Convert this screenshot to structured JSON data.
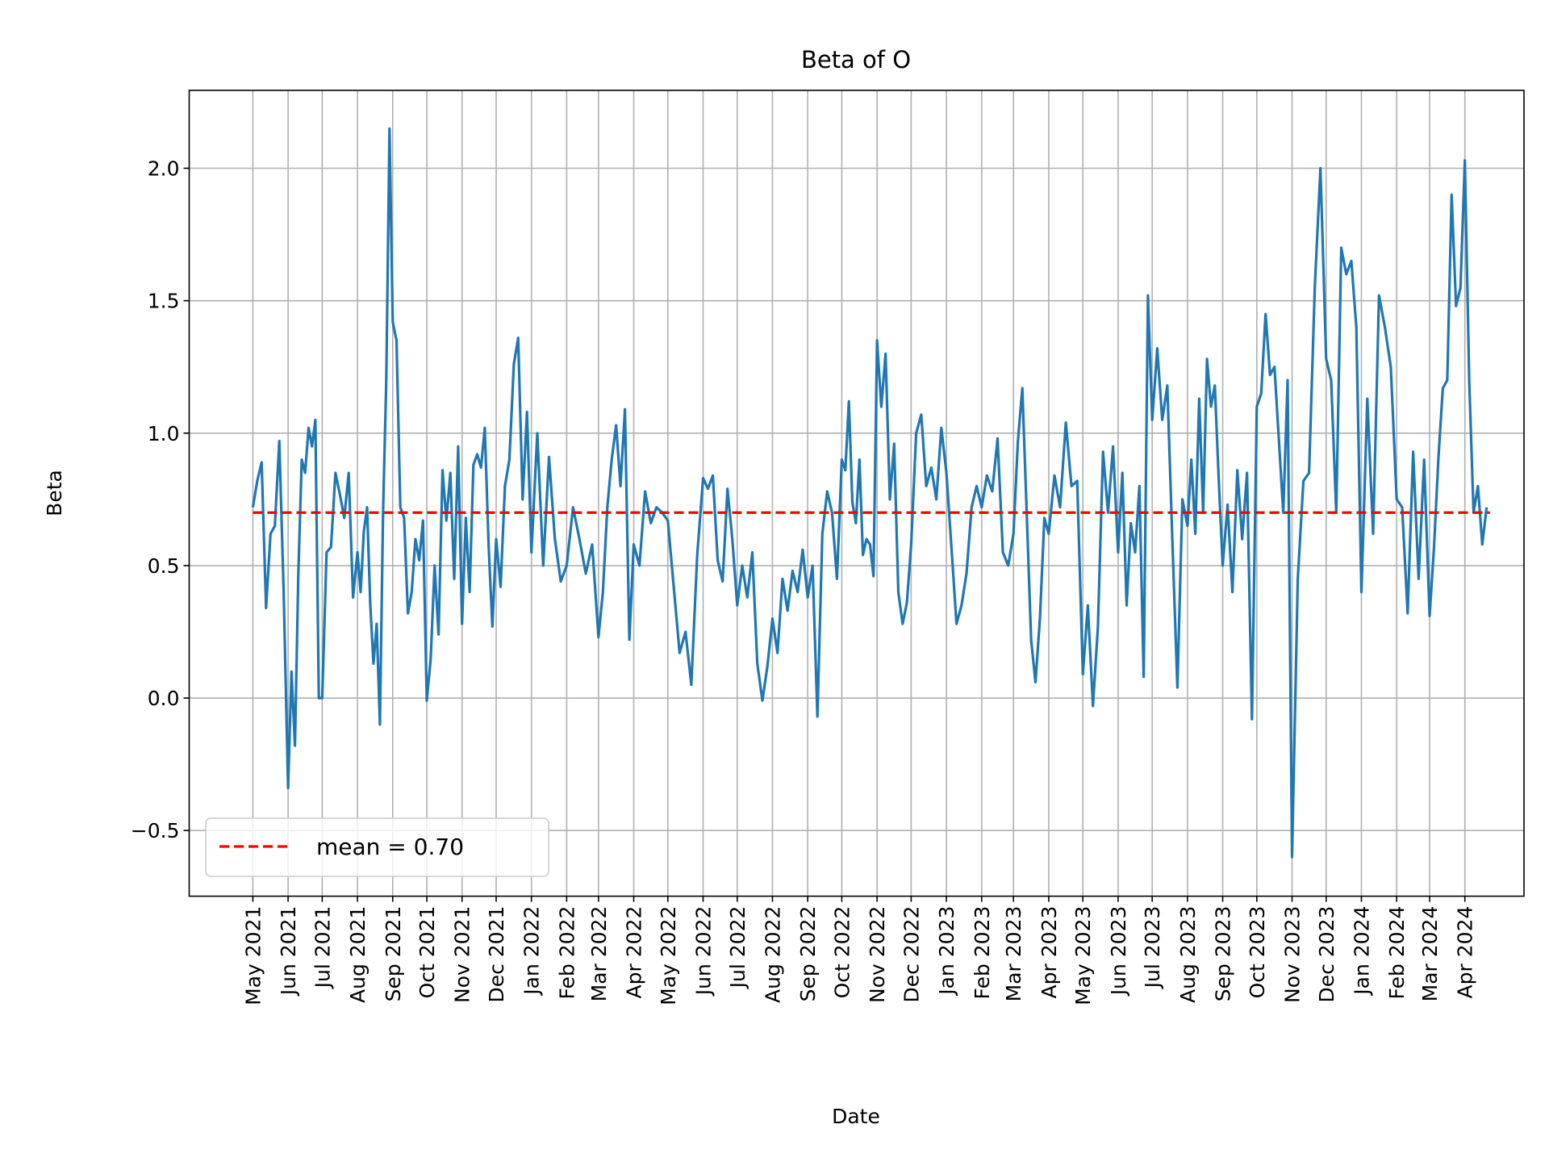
{
  "chart_data": {
    "type": "line",
    "title": "Beta of O",
    "xlabel": "Date",
    "ylabel": "Beta",
    "xlim": [
      "2021-03-06",
      "2024-05-23"
    ],
    "ylim": [
      -0.748,
      2.294
    ],
    "x_range": [
      "2021-05-01",
      "2024-04-23"
    ],
    "yticks": [
      -0.5,
      0.0,
      0.5,
      1.0,
      1.5,
      2.0
    ],
    "ytick_labels": [
      "−0.5",
      "0.0",
      "0.5",
      "1.0",
      "1.5",
      "2.0"
    ],
    "xticks": [
      "2021-05-01",
      "2021-06-01",
      "2021-07-01",
      "2021-08-01",
      "2021-09-01",
      "2021-10-01",
      "2021-11-01",
      "2021-12-01",
      "2022-01-01",
      "2022-02-01",
      "2022-03-01",
      "2022-04-01",
      "2022-05-01",
      "2022-06-01",
      "2022-07-01",
      "2022-08-01",
      "2022-09-01",
      "2022-10-01",
      "2022-11-01",
      "2022-12-01",
      "2023-01-01",
      "2023-02-01",
      "2023-03-01",
      "2023-04-01",
      "2023-05-01",
      "2023-06-01",
      "2023-07-01",
      "2023-08-01",
      "2023-09-01",
      "2023-10-01",
      "2023-11-01",
      "2023-12-01",
      "2024-01-01",
      "2024-02-01",
      "2024-03-01",
      "2024-04-01"
    ],
    "xtick_labels": [
      "May 2021",
      "Jun 2021",
      "Jul 2021",
      "Aug 2021",
      "Sep 2021",
      "Oct 2021",
      "Nov 2021",
      "Dec 2021",
      "Jan 2022",
      "Feb 2022",
      "Mar 2022",
      "Apr 2022",
      "May 2022",
      "Jun 2022",
      "Jul 2022",
      "Aug 2022",
      "Sep 2022",
      "Oct 2022",
      "Nov 2022",
      "Dec 2022",
      "Jan 2023",
      "Feb 2023",
      "Mar 2023",
      "Apr 2023",
      "May 2023",
      "Jun 2023",
      "Jul 2023",
      "Aug 2023",
      "Sep 2023",
      "Oct 2023",
      "Nov 2023",
      "Dec 2023",
      "Jan 2024",
      "Feb 2024",
      "Mar 2024",
      "Apr 2024"
    ],
    "grid": true,
    "legend_position": "lower-left",
    "series": [
      {
        "color": "#1f77b4",
        "style": "solid",
        "monthly_values": [
          {
            "month": "2021-05",
            "values": [
              0.72,
              0.82,
              0.89,
              0.34,
              0.62,
              0.65,
              0.97,
              0.4
            ]
          },
          {
            "month": "2021-06",
            "values": [
              -0.34,
              0.1,
              -0.18,
              0.47,
              0.9,
              0.85,
              1.02,
              0.95,
              1.05,
              0.0
            ]
          },
          {
            "month": "2021-07",
            "values": [
              0.0,
              0.55,
              0.57,
              0.85,
              0.77,
              0.68,
              0.85,
              0.38
            ]
          },
          {
            "month": "2021-08",
            "values": [
              0.55,
              0.4,
              0.63,
              0.72,
              0.35,
              0.13,
              0.28,
              -0.1,
              0.7,
              1.2,
              2.15
            ]
          },
          {
            "month": "2021-09",
            "values": [
              1.42,
              1.35,
              0.72,
              0.68,
              0.32,
              0.4,
              0.6,
              0.52,
              0.67
            ]
          },
          {
            "month": "2021-10",
            "values": [
              -0.01,
              0.15,
              0.5,
              0.24,
              0.86,
              0.67,
              0.85,
              0.45,
              0.95
            ]
          },
          {
            "month": "2021-11",
            "values": [
              0.28,
              0.68,
              0.4,
              0.88,
              0.92,
              0.87,
              1.02,
              0.58,
              0.27
            ]
          },
          {
            "month": "2021-12",
            "values": [
              0.6,
              0.42,
              0.8,
              0.9,
              1.26,
              1.36,
              0.75,
              1.08
            ]
          },
          {
            "month": "2022-01",
            "values": [
              0.55,
              1.0,
              0.5,
              0.91,
              0.6,
              0.44
            ]
          },
          {
            "month": "2022-02",
            "values": [
              0.5,
              0.72,
              0.6,
              0.47,
              0.58
            ]
          },
          {
            "month": "2022-03",
            "values": [
              0.23,
              0.4,
              0.72,
              0.9,
              1.03,
              0.8,
              1.09,
              0.22
            ]
          },
          {
            "month": "2022-04",
            "values": [
              0.58,
              0.5,
              0.78,
              0.66,
              0.72,
              0.7
            ]
          },
          {
            "month": "2022-05",
            "values": [
              0.67,
              0.42,
              0.17,
              0.25,
              0.05,
              0.54
            ]
          },
          {
            "month": "2022-06",
            "values": [
              0.83,
              0.79,
              0.84,
              0.52,
              0.44,
              0.79,
              0.6
            ]
          },
          {
            "month": "2022-07",
            "values": [
              0.35,
              0.5,
              0.38,
              0.55,
              0.13,
              -0.01,
              0.12
            ]
          },
          {
            "month": "2022-08",
            "values": [
              0.3,
              0.17,
              0.45,
              0.33,
              0.48,
              0.4,
              0.56
            ]
          },
          {
            "month": "2022-09",
            "values": [
              0.38,
              0.5,
              -0.07,
              0.62,
              0.78,
              0.7,
              0.45
            ]
          },
          {
            "month": "2022-10",
            "values": [
              0.9,
              0.86,
              1.12,
              0.74,
              0.66,
              0.9,
              0.54,
              0.6,
              0.58,
              0.46
            ]
          },
          {
            "month": "2022-11",
            "values": [
              1.35,
              1.1,
              1.3,
              0.75,
              0.96,
              0.4,
              0.28,
              0.36
            ]
          },
          {
            "month": "2022-12",
            "values": [
              0.58,
              1.0,
              1.07,
              0.8,
              0.87,
              0.75,
              1.02
            ]
          },
          {
            "month": "2023-01",
            "values": [
              0.85,
              0.57,
              0.28,
              0.35,
              0.47,
              0.72,
              0.8
            ]
          },
          {
            "month": "2023-02",
            "values": [
              0.72,
              0.84,
              0.78,
              0.98,
              0.55,
              0.5
            ]
          },
          {
            "month": "2023-03",
            "values": [
              0.62,
              0.97,
              1.17,
              0.7,
              0.22,
              0.06,
              0.3,
              0.68
            ]
          },
          {
            "month": "2023-04",
            "values": [
              0.62,
              0.84,
              0.72,
              1.04,
              0.8,
              0.82
            ]
          },
          {
            "month": "2023-05",
            "values": [
              0.09,
              0.35,
              -0.03,
              0.27,
              0.93,
              0.7,
              0.95
            ]
          },
          {
            "month": "2023-06",
            "values": [
              0.55,
              0.85,
              0.35,
              0.66,
              0.55,
              0.8,
              0.08,
              1.52
            ]
          },
          {
            "month": "2023-07",
            "values": [
              1.05,
              1.32,
              1.05,
              1.18,
              0.6,
              0.04,
              0.75
            ]
          },
          {
            "month": "2023-08",
            "values": [
              0.65,
              0.9,
              0.62,
              1.13,
              0.7,
              1.28,
              1.1,
              1.18,
              0.82
            ]
          },
          {
            "month": "2023-09",
            "values": [
              0.5,
              0.73,
              0.4,
              0.86,
              0.6,
              0.85,
              -0.08
            ]
          },
          {
            "month": "2023-10",
            "values": [
              1.1,
              1.15,
              1.45,
              1.22,
              1.25,
              0.98,
              0.7,
              1.2
            ]
          },
          {
            "month": "2023-11",
            "values": [
              -0.6,
              0.45,
              0.82,
              0.85,
              1.55,
              2.0
            ]
          },
          {
            "month": "2023-12",
            "values": [
              1.28,
              1.2,
              0.7,
              1.7,
              1.6,
              1.65,
              1.4
            ]
          },
          {
            "month": "2024-01",
            "values": [
              0.4,
              1.13,
              0.62,
              1.52,
              1.4,
              1.25
            ]
          },
          {
            "month": "2024-02",
            "values": [
              0.75,
              0.72,
              0.32,
              0.93,
              0.45,
              0.9
            ]
          },
          {
            "month": "2024-03",
            "values": [
              0.31,
              0.57,
              0.91,
              1.17,
              1.2,
              1.9,
              1.48,
              1.55
            ]
          },
          {
            "month": "2024-04",
            "values": [
              2.03,
              1.2,
              0.7,
              0.8,
              0.58,
              0.72
            ]
          }
        ]
      },
      {
        "name": "mean = 0.70",
        "value": 0.7,
        "color": "#ff0000",
        "style": "dashed"
      }
    ]
  }
}
